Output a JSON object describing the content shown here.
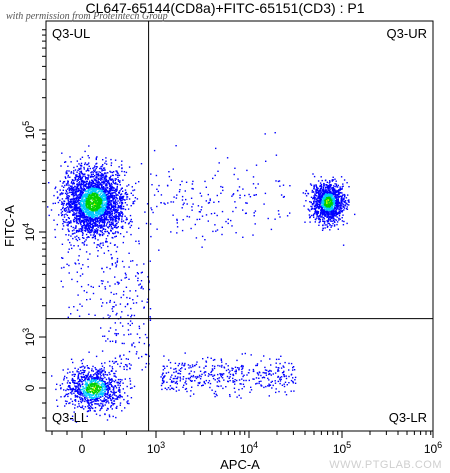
{
  "title": "CL647-65144(CD8a)+FITC-65151(CD3) : P1",
  "watermark_top": "with permission from Proteintech Group",
  "watermark_bottom": "WWW.PTGLAB.COM",
  "colors": {
    "axis": "#000000",
    "gate": "#000000",
    "low_density": "#0000ff",
    "mid_density": "#00c8ff",
    "high_density": "#00d000",
    "peak_density": "#ffff00"
  },
  "chart_data": {
    "type": "scatter",
    "plot_style": "flow-cytometry density dot plot",
    "xlabel": "APC-A",
    "ylabel": "FITC-A",
    "x_scale": "biexponential",
    "y_scale": "biexponential",
    "x_ticks": [
      {
        "value": 0,
        "label": "0"
      },
      {
        "value": 1000,
        "label": "10^3"
      },
      {
        "value": 10000,
        "label": "10^4"
      },
      {
        "value": 100000,
        "label": "10^5"
      },
      {
        "value": 1000000,
        "label": "10^6"
      }
    ],
    "y_ticks": [
      {
        "value": 0,
        "label": "0"
      },
      {
        "value": 1000,
        "label": "10^3"
      },
      {
        "value": 10000,
        "label": "10^4"
      },
      {
        "value": 100000,
        "label": "10^5"
      }
    ],
    "quadrant_gate": {
      "x": 900,
      "y": 1500
    },
    "quadrant_labels": [
      "Q3-UL",
      "Q3-UR",
      "Q3-LL",
      "Q3-LR"
    ],
    "populations": [
      {
        "quadrant": "Q3-UL",
        "center_x": 150,
        "center_y": 20000,
        "relative_density": "very high"
      },
      {
        "quadrant": "Q3-UR",
        "center_x": 70000,
        "center_y": 20000,
        "relative_density": "high"
      },
      {
        "quadrant": "Q3-LL",
        "center_x": 150,
        "center_y": 0,
        "relative_density": "medium"
      },
      {
        "quadrant": "Q3-LR",
        "center_x": 10000,
        "center_y": 0,
        "relative_density": "low"
      }
    ]
  }
}
